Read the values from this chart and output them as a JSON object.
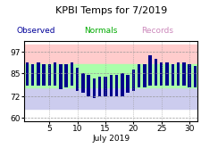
{
  "title": "KPBI Temps for 7/2019",
  "legend_labels": [
    "Observed",
    "Normals",
    "Records"
  ],
  "legend_colors": [
    "#000099",
    "#00AA00",
    "#CC88BB"
  ],
  "xlabel": "July 2019",
  "yticks": [
    60,
    72,
    85,
    97
  ],
  "ylim": [
    58,
    103
  ],
  "xlim": [
    0.5,
    31.5
  ],
  "xticks": [
    5,
    10,
    15,
    20,
    25,
    30
  ],
  "days": [
    1,
    2,
    3,
    4,
    5,
    6,
    7,
    8,
    9,
    10,
    11,
    12,
    13,
    14,
    15,
    16,
    17,
    18,
    19,
    20,
    21,
    22,
    23,
    24,
    25,
    26,
    27,
    28,
    29,
    30,
    31
  ],
  "obs_high": [
    91,
    90,
    91,
    90,
    90,
    91,
    90,
    90,
    91,
    88,
    85,
    84,
    82,
    83,
    83,
    84,
    84,
    85,
    84,
    87,
    90,
    90,
    95,
    93,
    91,
    91,
    90,
    91,
    91,
    90,
    89
  ],
  "obs_low": [
    78,
    78,
    78,
    78,
    78,
    78,
    76,
    77,
    78,
    75,
    74,
    72,
    71,
    72,
    72,
    72,
    72,
    72,
    74,
    75,
    77,
    77,
    78,
    78,
    78,
    78,
    78,
    78,
    78,
    77,
    77
  ],
  "norm_high": [
    90,
    90,
    90,
    90,
    90,
    90,
    90,
    90,
    90,
    90,
    90,
    90,
    90,
    90,
    90,
    90,
    90,
    90,
    90,
    90,
    90,
    90,
    90,
    90,
    90,
    90,
    90,
    90,
    90,
    90,
    90
  ],
  "norm_low": [
    77,
    77,
    77,
    77,
    77,
    77,
    77,
    77,
    77,
    77,
    77,
    77,
    77,
    77,
    77,
    77,
    77,
    77,
    77,
    77,
    77,
    77,
    77,
    77,
    77,
    77,
    77,
    77,
    77,
    77,
    77
  ],
  "rec_high": [
    99,
    98,
    99,
    99,
    100,
    100,
    99,
    98,
    99,
    98,
    98,
    99,
    99,
    100,
    100,
    99,
    99,
    100,
    100,
    101,
    100,
    99,
    99,
    99,
    99,
    99,
    100,
    100,
    101,
    101,
    101
  ],
  "rec_low": [
    66,
    66,
    65,
    66,
    66,
    66,
    67,
    67,
    67,
    67,
    68,
    67,
    67,
    67,
    67,
    67,
    67,
    67,
    67,
    67,
    68,
    68,
    68,
    68,
    68,
    67,
    67,
    67,
    66,
    66,
    66
  ],
  "obs_color": "#00008B",
  "norm_color_fill": "#AAFFAA",
  "rec_high_color": "#FFCCCC",
  "rec_low_color": "#CCCCEE",
  "bar_width": 0.55,
  "grid_color": "#999999",
  "bg_color": "#FFFFFF",
  "title_fontsize": 8,
  "legend_fontsize": 6.5,
  "tick_fontsize": 6.5
}
